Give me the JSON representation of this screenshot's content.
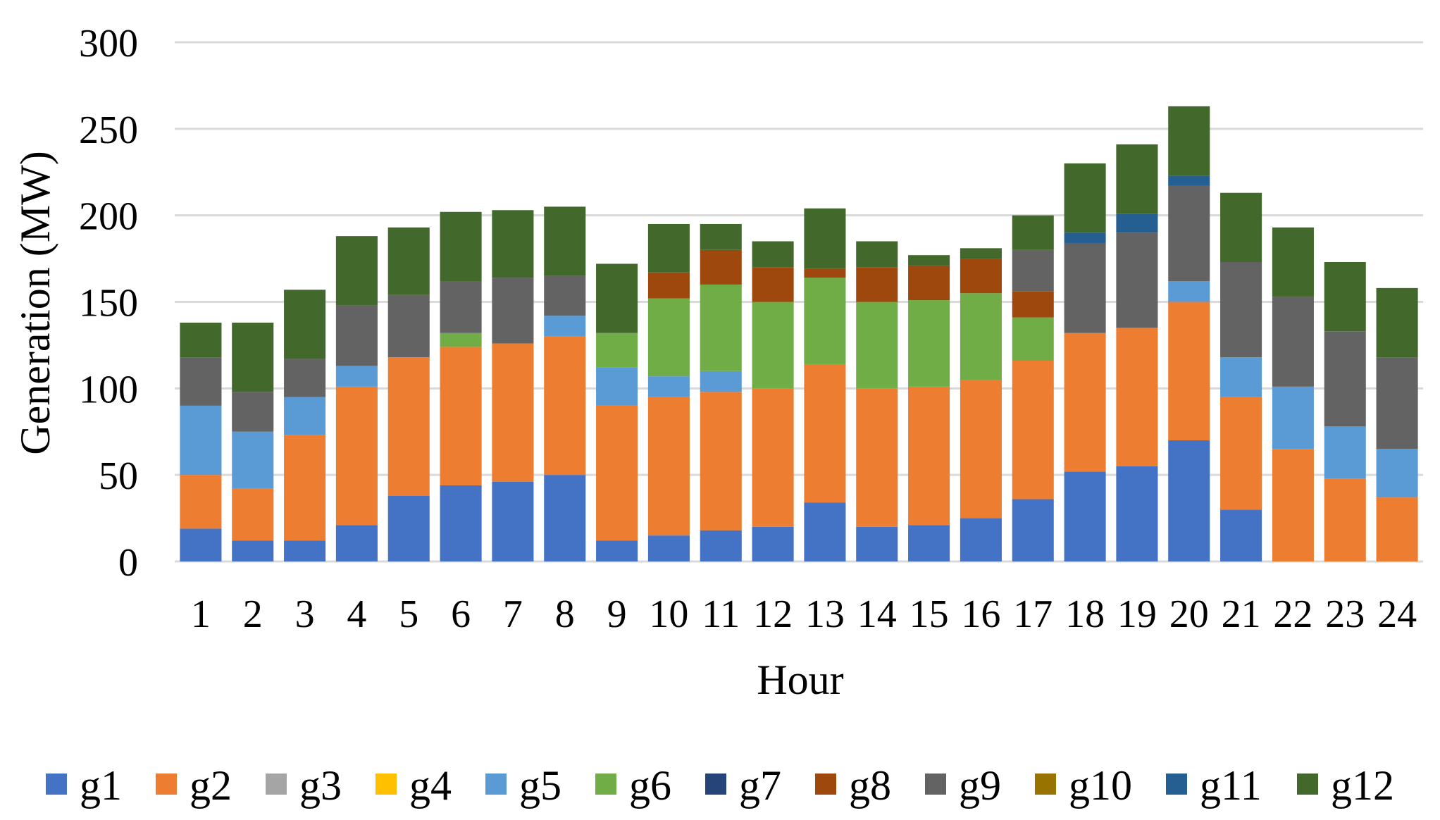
{
  "chart_data": {
    "type": "bar",
    "stacked": true,
    "title": "",
    "xlabel": "Hour",
    "ylabel": "Generation (MW)",
    "ylim": [
      0,
      300
    ],
    "yticks": [
      0,
      50,
      100,
      150,
      200,
      250,
      300
    ],
    "grid": true,
    "legend_position": "bottom",
    "categories": [
      "1",
      "2",
      "3",
      "4",
      "5",
      "6",
      "7",
      "8",
      "9",
      "10",
      "11",
      "12",
      "13",
      "14",
      "15",
      "16",
      "17",
      "18",
      "19",
      "20",
      "21",
      "22",
      "23",
      "24"
    ],
    "series": [
      {
        "name": "g1",
        "color": "#4472C4",
        "values": [
          19,
          12,
          12,
          21,
          38,
          44,
          46,
          50,
          12,
          15,
          18,
          20,
          34,
          20,
          21,
          25,
          36,
          52,
          55,
          70,
          30,
          0,
          0,
          0
        ]
      },
      {
        "name": "g2",
        "color": "#ED7D31",
        "values": [
          31,
          30,
          61,
          80,
          80,
          80,
          80,
          80,
          78,
          80,
          80,
          80,
          80,
          80,
          80,
          80,
          80,
          80,
          80,
          80,
          65,
          65,
          48,
          37
        ]
      },
      {
        "name": "g3",
        "color": "#A5A5A5",
        "values": [
          0,
          0,
          0,
          0,
          0,
          0,
          0,
          0,
          0,
          0,
          0,
          0,
          0,
          0,
          0,
          0,
          0,
          0,
          0,
          0,
          0,
          0,
          0,
          0
        ]
      },
      {
        "name": "g4",
        "color": "#FFC000",
        "values": [
          0,
          0,
          0,
          0,
          0,
          0,
          0,
          0,
          0,
          0,
          0,
          0,
          0,
          0,
          0,
          0,
          0,
          0,
          0,
          0,
          0,
          0,
          0,
          0
        ]
      },
      {
        "name": "g5",
        "color": "#5B9BD5",
        "values": [
          40,
          33,
          22,
          12,
          0,
          0,
          0,
          12,
          22,
          12,
          12,
          0,
          0,
          0,
          0,
          0,
          0,
          0,
          0,
          12,
          23,
          36,
          30,
          28
        ]
      },
      {
        "name": "g6",
        "color": "#70AD47",
        "values": [
          0,
          0,
          0,
          0,
          0,
          8,
          0,
          0,
          20,
          45,
          50,
          50,
          50,
          50,
          50,
          50,
          25,
          0,
          0,
          0,
          0,
          0,
          0,
          0
        ]
      },
      {
        "name": "g7",
        "color": "#264478",
        "values": [
          0,
          0,
          0,
          0,
          0,
          0,
          0,
          0,
          0,
          0,
          0,
          0,
          0,
          0,
          0,
          0,
          0,
          0,
          0,
          0,
          0,
          0,
          0,
          0
        ]
      },
      {
        "name": "g8",
        "color": "#9E480E",
        "values": [
          0,
          0,
          0,
          0,
          0,
          0,
          0,
          0,
          0,
          15,
          20,
          20,
          5,
          20,
          20,
          20,
          15,
          0,
          0,
          0,
          0,
          0,
          0,
          0
        ]
      },
      {
        "name": "g9",
        "color": "#636363",
        "values": [
          28,
          23,
          22,
          35,
          36,
          30,
          38,
          23,
          0,
          0,
          0,
          0,
          0,
          0,
          0,
          0,
          24,
          52,
          55,
          55,
          55,
          52,
          55,
          53
        ]
      },
      {
        "name": "g10",
        "color": "#997300",
        "values": [
          0,
          0,
          0,
          0,
          0,
          0,
          0,
          0,
          0,
          0,
          0,
          0,
          0,
          0,
          0,
          0,
          0,
          0,
          0,
          0,
          0,
          0,
          0,
          0
        ]
      },
      {
        "name": "g11",
        "color": "#255E91",
        "values": [
          0,
          0,
          0,
          0,
          0,
          0,
          0,
          0,
          0,
          0,
          0,
          0,
          0,
          0,
          0,
          0,
          0,
          6,
          11,
          6,
          0,
          0,
          0,
          0
        ]
      },
      {
        "name": "g12",
        "color": "#43682B",
        "values": [
          20,
          40,
          40,
          40,
          39,
          40,
          39,
          40,
          40,
          28,
          15,
          15,
          35,
          15,
          6,
          6,
          20,
          40,
          40,
          40,
          40,
          40,
          40,
          40
        ]
      }
    ]
  }
}
